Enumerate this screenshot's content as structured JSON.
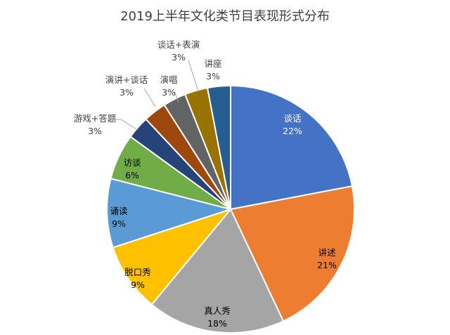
{
  "chart_data": {
    "type": "pie",
    "title": "2019上半年文化类节目表现形式分布",
    "slices": [
      {
        "name": "谈话",
        "value": 22,
        "label": "22%",
        "color": "#4472C4"
      },
      {
        "name": "讲述",
        "value": 21,
        "label": "21%",
        "color": "#ED7D31"
      },
      {
        "name": "真人秀",
        "value": 18,
        "label": "18%",
        "color": "#A5A5A5"
      },
      {
        "name": "脱口秀",
        "value": 9,
        "label": "9%",
        "color": "#FFC000"
      },
      {
        "name": "诵读",
        "value": 9,
        "label": "9%",
        "color": "#5B9BD5"
      },
      {
        "name": "访谈",
        "value": 6,
        "label": "6%",
        "color": "#70AD47"
      },
      {
        "name": "游戏+答题",
        "value": 3,
        "label": "3%",
        "color": "#264478"
      },
      {
        "name": "演讲+谈话",
        "value": 3,
        "label": "3%",
        "color": "#9E480E"
      },
      {
        "name": "演唱",
        "value": 3,
        "label": "3%",
        "color": "#636363"
      },
      {
        "name": "谈话+表演",
        "value": 3,
        "label": "3%",
        "color": "#997300"
      },
      {
        "name": "讲座",
        "value": 3,
        "label": "3%",
        "color": "#255E91"
      }
    ]
  }
}
